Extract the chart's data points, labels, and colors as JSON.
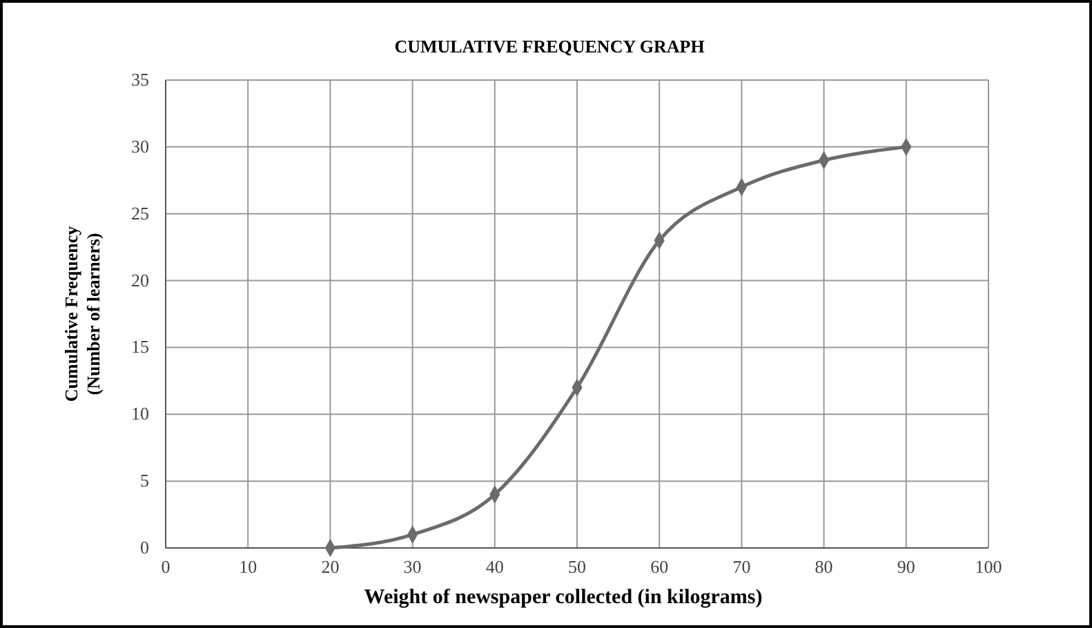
{
  "chart_data": {
    "type": "line",
    "title": "CUMULATIVE FREQUENCY GRAPH",
    "xlabel": "Weight of newspaper collected (in kilograms)",
    "ylabel": "Cumulative Frequency\n(Number of learners)",
    "x": [
      20,
      30,
      40,
      50,
      60,
      70,
      80,
      90
    ],
    "series": [
      {
        "color": "#6b6b6b",
        "values": [
          0,
          1,
          4,
          12,
          23,
          27,
          29,
          30
        ]
      }
    ],
    "xlim": [
      0,
      100
    ],
    "xticks": [
      0,
      10,
      20,
      30,
      40,
      50,
      60,
      70,
      80,
      90,
      100
    ],
    "ylim": [
      0,
      35
    ],
    "yticks": [
      0,
      5,
      10,
      15,
      20,
      25,
      30,
      35
    ],
    "grid": true,
    "marker": "diamond",
    "line_style": "solid"
  }
}
